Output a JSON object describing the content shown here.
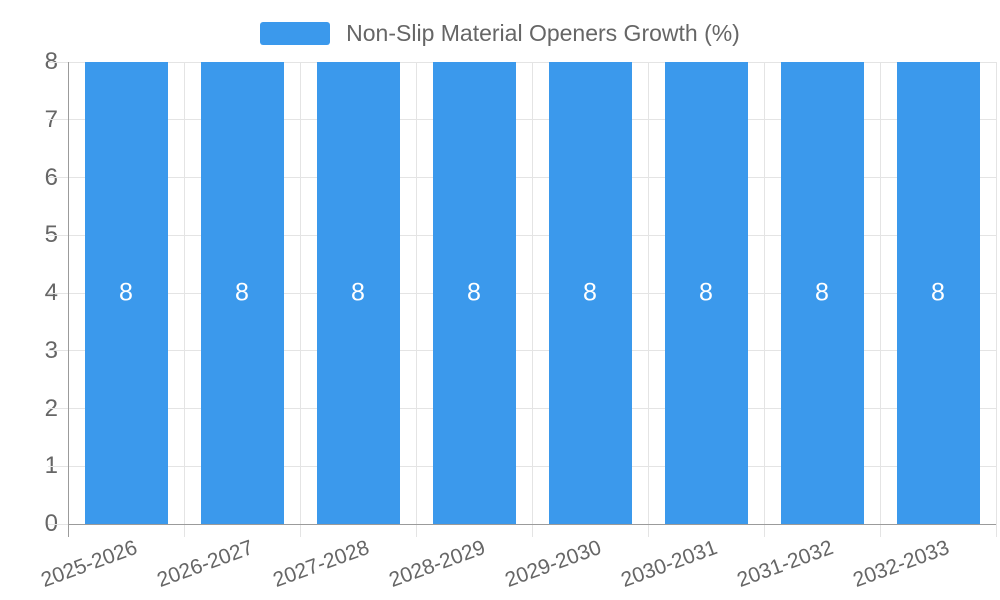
{
  "legend": {
    "label": "Non-Slip Material Openers Growth (%)"
  },
  "colors": {
    "bar": "#3b99ec",
    "grid": "#e4e4e4",
    "axis": "#9b9b9b",
    "text": "#666666",
    "value_label": "#ffffff",
    "background": "#ffffff"
  },
  "chart_data": {
    "type": "bar",
    "title": "Non-Slip Material Openers Growth (%)",
    "categories": [
      "2025-2026",
      "2026-2027",
      "2027-2028",
      "2028-2029",
      "2029-2030",
      "2030-2031",
      "2031-2032",
      "2032-2033"
    ],
    "series": [
      {
        "name": "Non-Slip Material Openers Growth (%)",
        "values": [
          8,
          8,
          8,
          8,
          8,
          8,
          8,
          8
        ]
      }
    ],
    "value_labels": [
      "8",
      "8",
      "8",
      "8",
      "8",
      "8",
      "8",
      "8"
    ],
    "xlabel": "",
    "ylabel": "",
    "ylim": [
      0,
      8
    ],
    "yticks": [
      0,
      1,
      2,
      3,
      4,
      5,
      6,
      7,
      8
    ],
    "grid": true,
    "legend_position": "top",
    "x_label_rotation_deg": -20
  }
}
